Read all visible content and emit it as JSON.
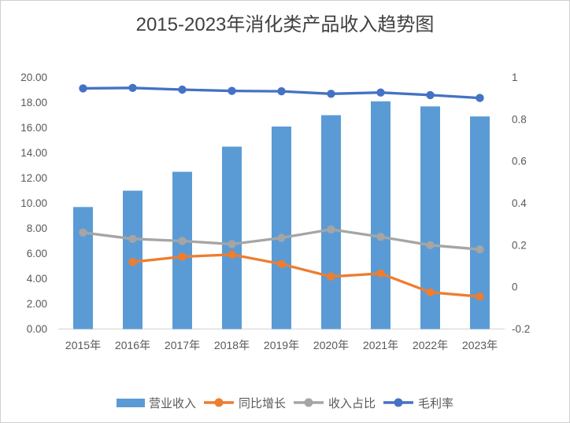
{
  "title": "2015-2023年消化类产品收入趋势图",
  "chart_data": {
    "type": "bar",
    "subtype": "combo-bar-line",
    "title": "2015-2023年消化类产品收入趋势图",
    "categories": [
      "2015年",
      "2016年",
      "2017年",
      "2018年",
      "2019年",
      "2020年",
      "2021年",
      "2022年",
      "2023年"
    ],
    "series": [
      {
        "name": "营业收入",
        "type": "bar",
        "axis": "left",
        "color": "#5B9BD5",
        "values": [
          9.7,
          11.0,
          12.5,
          14.5,
          16.1,
          17.0,
          18.1,
          17.7,
          16.9
        ]
      },
      {
        "name": "同比增长",
        "type": "line",
        "axis": "right",
        "color": "#ED7D31",
        "values": [
          null,
          0.12,
          0.145,
          0.155,
          0.11,
          0.05,
          0.065,
          -0.025,
          -0.045
        ]
      },
      {
        "name": "收入占比",
        "type": "line",
        "axis": "right",
        "color": "#A5A5A5",
        "values": [
          0.26,
          0.23,
          0.22,
          0.205,
          0.235,
          0.275,
          0.24,
          0.2,
          0.18
        ]
      },
      {
        "name": "毛利率",
        "type": "line",
        "axis": "right",
        "color": "#4472C4",
        "values": [
          0.948,
          0.95,
          0.942,
          0.936,
          0.934,
          0.922,
          0.928,
          0.916,
          0.902
        ]
      }
    ],
    "left_axis": {
      "min": 0,
      "max": 20,
      "ticks": [
        "0.00",
        "2.00",
        "4.00",
        "6.00",
        "8.00",
        "10.00",
        "12.00",
        "14.00",
        "16.00",
        "18.00",
        "20.00"
      ]
    },
    "right_axis": {
      "min": -0.2,
      "max": 1,
      "ticks": [
        "-0.2",
        "0",
        "0.2",
        "0.4",
        "0.6",
        "0.8",
        "1"
      ]
    },
    "grid": false,
    "legend_position": "bottom",
    "colors": {
      "axis_line": "#d9d9d9",
      "tick_text": "#595959",
      "title_text": "#404040",
      "frame_border": "#cfcfcf",
      "background": "#ffffff"
    }
  }
}
